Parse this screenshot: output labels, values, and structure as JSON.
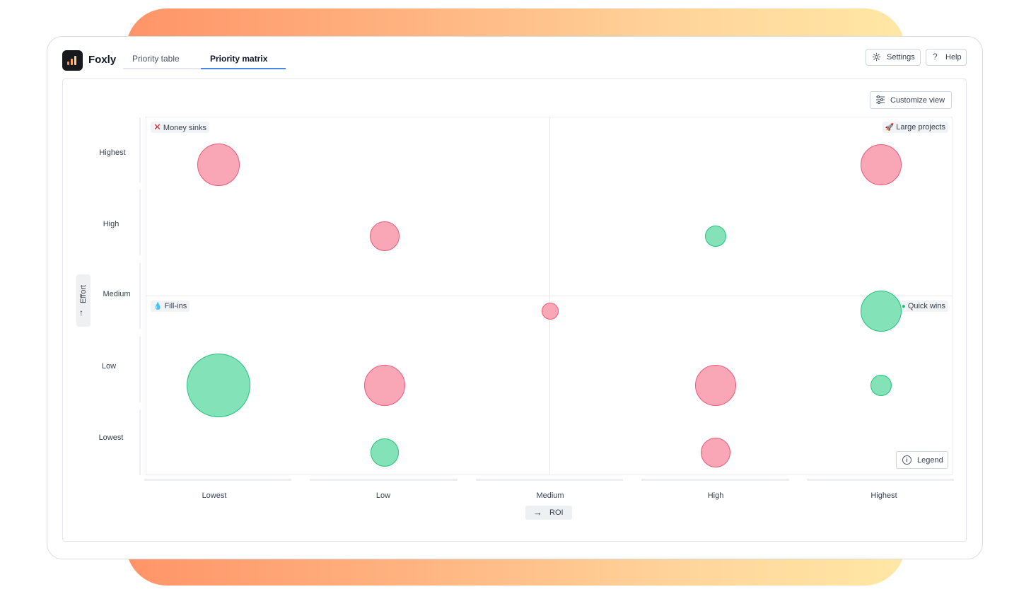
{
  "app": {
    "name": "Foxly"
  },
  "tabs": [
    {
      "label": "Priority table",
      "active": false
    },
    {
      "label": "Priority matrix",
      "active": true
    }
  ],
  "header_buttons": {
    "settings": "Settings",
    "help": "Help"
  },
  "icons": {
    "settings": "gear-icon",
    "help": "question-icon",
    "customize": "sliders-icon",
    "legend": "info-icon"
  },
  "toolbar": {
    "customize_view": "Customize view"
  },
  "matrix": {
    "y_axis_title": "Effort",
    "x_axis_title": "ROI",
    "y_levels": [
      "Highest",
      "High",
      "Medium",
      "Low",
      "Lowest"
    ],
    "x_levels": [
      "Lowest",
      "Low",
      "Medium",
      "High",
      "Highest"
    ],
    "quadrants": {
      "top_left": "Money sinks",
      "top_right": "Large projects",
      "bottom_left": "Fill-ins",
      "bottom_right": "Quick wins"
    },
    "legend_button": "Legend"
  },
  "colors": {
    "accent": "#4a86e8",
    "bubble_red_fill": "#f9a6b6",
    "bubble_red_stroke": "#ee5a7a",
    "bubble_green_fill": "#84e2b8",
    "bubble_green_stroke": "#22c47c",
    "gradient": [
      "#ff9468",
      "#ffe8a6"
    ]
  },
  "chart_data": {
    "type": "scatter",
    "x_categories": [
      "Lowest",
      "Low",
      "Medium",
      "High",
      "Highest"
    ],
    "y_categories": [
      "Lowest",
      "Low",
      "Medium",
      "High",
      "Highest"
    ],
    "points": [
      {
        "roi": "Lowest",
        "effort": "Highest",
        "relative_size": 0.67,
        "color": "red"
      },
      {
        "roi": "Highest",
        "effort": "Highest",
        "relative_size": 0.64,
        "color": "red"
      },
      {
        "roi": "Low",
        "effort": "High",
        "relative_size": 0.47,
        "color": "red"
      },
      {
        "roi": "High",
        "effort": "High",
        "relative_size": 0.33,
        "color": "green"
      },
      {
        "roi": "Medium",
        "effort": "Medium",
        "relative_size": 0.27,
        "color": "red"
      },
      {
        "roi": "Highest",
        "effort": "Medium",
        "relative_size": 0.64,
        "color": "green"
      },
      {
        "roi": "Lowest",
        "effort": "Low",
        "relative_size": 1.0,
        "color": "green"
      },
      {
        "roi": "Low",
        "effort": "Low",
        "relative_size": 0.64,
        "color": "red"
      },
      {
        "roi": "High",
        "effort": "Low",
        "relative_size": 0.64,
        "color": "red"
      },
      {
        "roi": "Highest",
        "effort": "Low",
        "relative_size": 0.33,
        "color": "green"
      },
      {
        "roi": "Low",
        "effort": "Lowest",
        "relative_size": 0.44,
        "color": "green"
      },
      {
        "roi": "High",
        "effort": "Lowest",
        "relative_size": 0.47,
        "color": "red"
      }
    ]
  }
}
